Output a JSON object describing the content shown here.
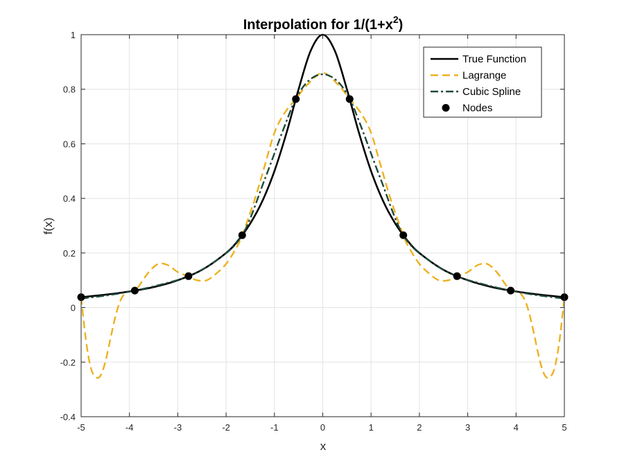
{
  "chart_data": {
    "type": "line",
    "title": "Interpolation for 1/(1+x²)",
    "xlabel": "x",
    "ylabel": "f(x)",
    "xlim": [
      -5,
      5
    ],
    "ylim": [
      -0.4,
      1
    ],
    "xticks": [
      -5,
      -4,
      -3,
      -2,
      -1,
      0,
      1,
      2,
      3,
      4,
      5
    ],
    "yticks": [
      -0.4,
      -0.2,
      0,
      0.2,
      0.4,
      0.6,
      0.8,
      1
    ],
    "grid": true,
    "legend_position": "top-right",
    "series": [
      {
        "name": "True Function",
        "style": "solid",
        "color": "#000000",
        "x": [
          -5,
          -4.5,
          -4,
          -3.5,
          -3,
          -2.5,
          -2,
          -1.75,
          -1.5,
          -1.25,
          -1,
          -0.75,
          -0.5,
          -0.25,
          0,
          0.25,
          0.5,
          0.75,
          1,
          1.25,
          1.5,
          1.75,
          2,
          2.5,
          3,
          3.5,
          4,
          4.5,
          5
        ],
        "y": [
          0.038,
          0.047,
          0.059,
          0.075,
          0.1,
          0.138,
          0.2,
          0.246,
          0.308,
          0.39,
          0.5,
          0.64,
          0.8,
          0.941,
          1.0,
          0.941,
          0.8,
          0.64,
          0.5,
          0.39,
          0.308,
          0.246,
          0.2,
          0.138,
          0.1,
          0.075,
          0.059,
          0.047,
          0.038
        ]
      },
      {
        "name": "Lagrange",
        "style": "dashed",
        "color": "#EDB120",
        "x": [
          -5,
          -4.9,
          -4.8,
          -4.7,
          -4.6,
          -4.5,
          -4.4,
          -4.3,
          -4.2,
          -4.1,
          -4.0,
          -3.9,
          -3.8,
          -3.6,
          -3.4,
          -3.2,
          -3.0,
          -2.8,
          -2.6,
          -2.4,
          -2.2,
          -2.0,
          -1.8,
          -1.667,
          -1.4,
          -1.2,
          -1.0,
          -0.8,
          -0.556,
          -0.3,
          0,
          0.3,
          0.556,
          0.8,
          1.0,
          1.2,
          1.4,
          1.667,
          1.8,
          2.0,
          2.2,
          2.4,
          2.6,
          2.8,
          3.0,
          3.2,
          3.4,
          3.6,
          3.8,
          3.9,
          4.0,
          4.1,
          4.2,
          4.3,
          4.4,
          4.5,
          4.6,
          4.7,
          4.8,
          4.9,
          5
        ],
        "y": [
          0.038,
          -0.12,
          -0.22,
          -0.255,
          -0.25,
          -0.2,
          -0.12,
          -0.04,
          0.02,
          0.05,
          0.058,
          0.062,
          0.08,
          0.13,
          0.16,
          0.155,
          0.13,
          0.115,
          0.1,
          0.1,
          0.125,
          0.16,
          0.215,
          0.265,
          0.4,
          0.52,
          0.64,
          0.71,
          0.765,
          0.82,
          0.86,
          0.82,
          0.765,
          0.71,
          0.64,
          0.52,
          0.4,
          0.265,
          0.215,
          0.16,
          0.125,
          0.1,
          0.1,
          0.115,
          0.13,
          0.155,
          0.16,
          0.13,
          0.08,
          0.062,
          0.058,
          0.05,
          0.02,
          -0.04,
          -0.12,
          -0.2,
          -0.25,
          -0.255,
          -0.22,
          -0.12,
          0.038
        ]
      },
      {
        "name": "Cubic Spline",
        "style": "dashdot",
        "color": "#1F4A3A",
        "x": [
          -5,
          -4.444,
          -3.889,
          -3.333,
          -2.778,
          -2.222,
          -1.667,
          -1.2,
          -0.8,
          -0.556,
          -0.3,
          0,
          0.3,
          0.556,
          0.8,
          1.2,
          1.667,
          2.222,
          2.778,
          3.333,
          3.889,
          4.444,
          5
        ],
        "y": [
          0.033,
          0.045,
          0.062,
          0.085,
          0.115,
          0.17,
          0.265,
          0.47,
          0.66,
          0.765,
          0.83,
          0.855,
          0.83,
          0.765,
          0.66,
          0.47,
          0.265,
          0.17,
          0.115,
          0.085,
          0.062,
          0.045,
          0.033
        ]
      },
      {
        "name": "Nodes",
        "style": "markers",
        "color": "#000000",
        "x": [
          -5,
          -3.889,
          -2.778,
          -1.667,
          -0.556,
          0.556,
          1.667,
          2.778,
          3.889,
          5
        ],
        "y": [
          0.038,
          0.062,
          0.115,
          0.265,
          0.764,
          0.764,
          0.265,
          0.115,
          0.062,
          0.038
        ]
      }
    ]
  }
}
